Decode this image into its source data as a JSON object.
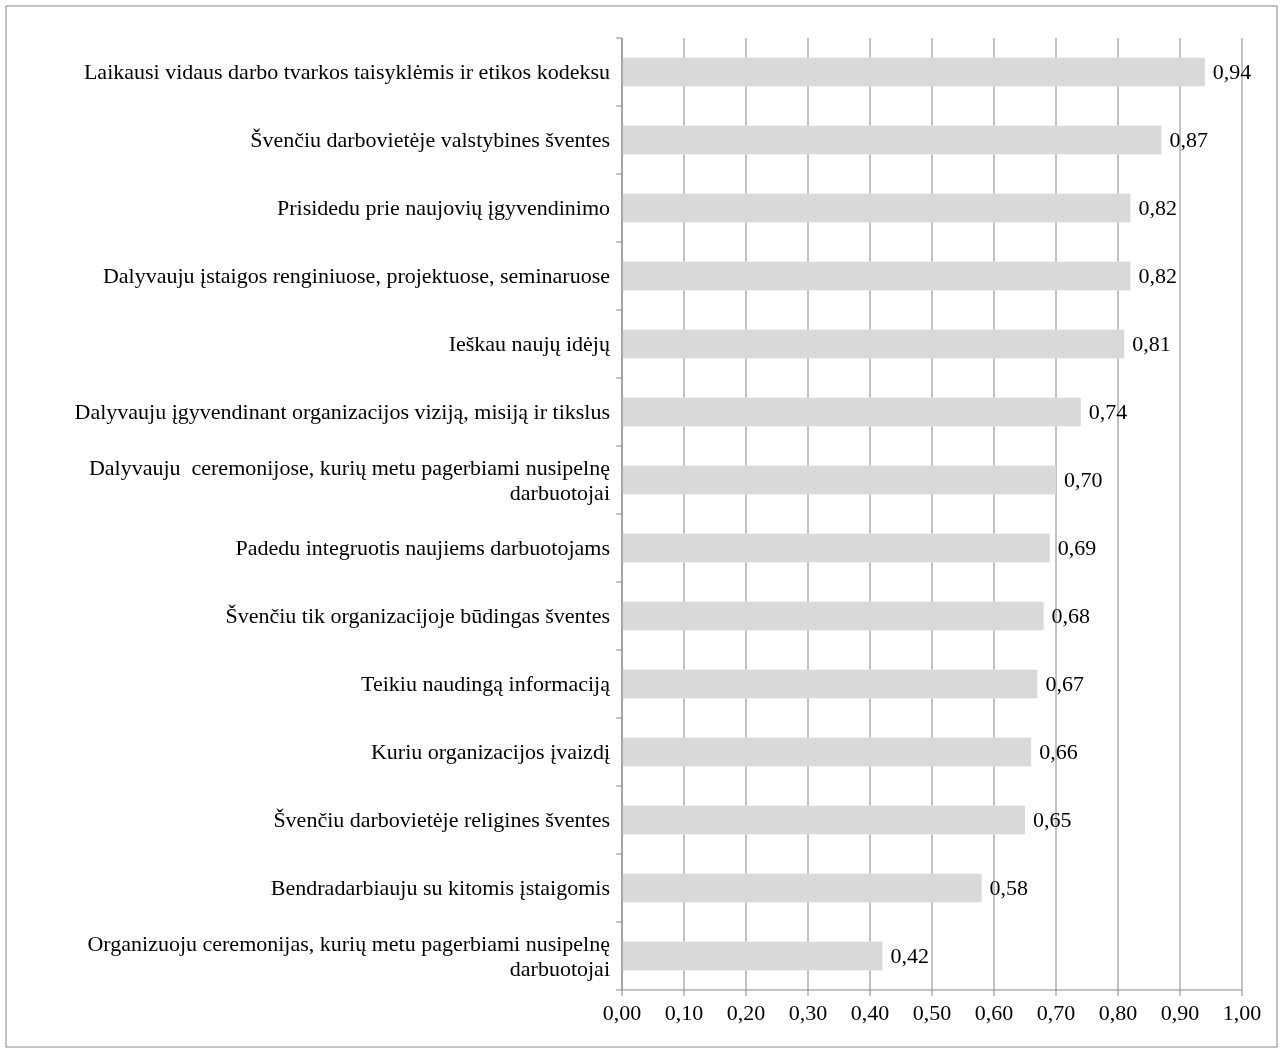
{
  "chart_data": {
    "type": "bar",
    "orientation": "horizontal",
    "categories": [
      "Laikausi vidaus darbo tvarkos taisyklėmis ir etikos kodeksu",
      "Švenčiu darbovietėje valstybines šventes",
      "Prisidedu prie naujovių įgyvendinimo",
      "Dalyvauju įstaigos renginiuose, projektuose, seminaruose",
      "Ieškau naujų idėjų",
      "Dalyvauju įgyvendinant organizacijos viziją, misiją ir tikslus",
      "Dalyvauju  ceremonijose, kurių metu pagerbiami nusipelnę darbuotojai",
      "Padedu integruotis naujiems darbuotojams",
      "Švenčiu tik organizacijoje būdingas šventes",
      "Teikiu naudingą informaciją",
      "Kuriu organizacijos įvaizdį",
      "Švenčiu darbovietėje religines šventes",
      "Bendradarbiauju su kitomis įstaigomis",
      "Organizuoju ceremonijas, kurių metu pagerbiami nusipelnę darbuotojai"
    ],
    "values": [
      0.94,
      0.87,
      0.82,
      0.82,
      0.81,
      0.74,
      0.7,
      0.69,
      0.68,
      0.67,
      0.66,
      0.65,
      0.58,
      0.42
    ],
    "value_labels": [
      "0,94",
      "0,87",
      "0,82",
      "0,82",
      "0,81",
      "0,74",
      "0,70",
      "0,69",
      "0,68",
      "0,67",
      "0,66",
      "0,65",
      "0,58",
      "0,42"
    ],
    "color": "#d9d9d9",
    "xlim": [
      0,
      1
    ],
    "xticks": [
      {
        "value": 0,
        "label": "0,00"
      },
      {
        "value": 0.1,
        "label": "0,10"
      },
      {
        "value": 0.2,
        "label": "0,20"
      },
      {
        "value": 0.3,
        "label": "0,30"
      },
      {
        "value": 0.4,
        "label": "0,40"
      },
      {
        "value": 0.5,
        "label": "0,50"
      },
      {
        "value": 0.6,
        "label": "0,60"
      },
      {
        "value": 0.7,
        "label": "0,70"
      },
      {
        "value": 0.8,
        "label": "0,80"
      },
      {
        "value": 0.9,
        "label": "0,90"
      },
      {
        "value": 1,
        "label": "1,00"
      }
    ],
    "grid": "x"
  }
}
